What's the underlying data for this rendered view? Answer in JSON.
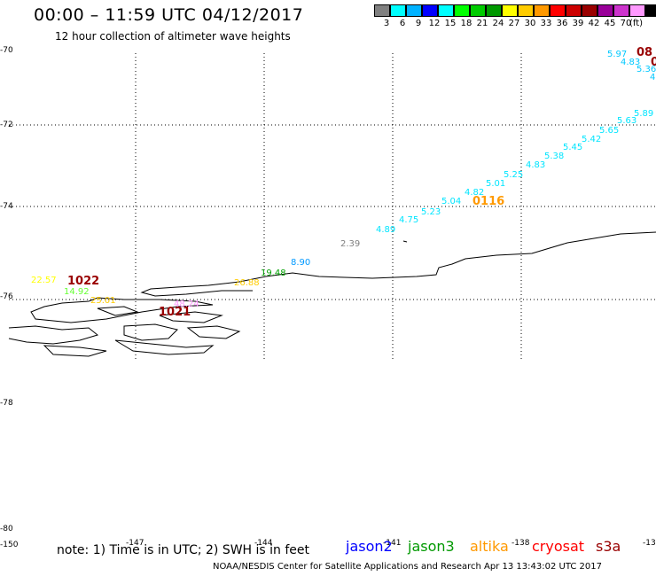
{
  "header": {
    "title": "00:00 – 11:59 UTC 04/12/2017",
    "subtitle": "12 hour collection of altimeter wave heights"
  },
  "color_scale": {
    "swatches": [
      "#808080",
      "#00ffff",
      "#00b2ff",
      "#0000ff",
      "#00ffff",
      "#00ff00",
      "#00cc00",
      "#009900",
      "#ffff00",
      "#ffcc00",
      "#ff9900",
      "#ff0000",
      "#cc0000",
      "#990000",
      "#990099",
      "#cc33cc",
      "#ff99ff",
      "#000000"
    ],
    "labels": [
      "3",
      "6",
      "9",
      "12",
      "15",
      "18",
      "21",
      "24",
      "27",
      "30",
      "33",
      "36",
      "39",
      "42",
      "45",
      "70"
    ],
    "unit": "(ft)"
  },
  "axes": {
    "lat_labels": [
      "-70",
      "-72",
      "-74",
      "-76",
      "-78",
      "-78",
      "-80"
    ],
    "lon_labels": [
      "-150",
      "-147",
      "-144",
      "-141",
      "-138",
      "-135"
    ]
  },
  "observations": [
    {
      "text": "5.97",
      "color": "#00c8ff"
    },
    {
      "text": "4.83",
      "color": "#00c8ff"
    },
    {
      "text": "5.36",
      "color": "#00c8ff"
    },
    {
      "text": "4",
      "color": "#00c8ff"
    },
    {
      "text": "5.89",
      "color": "#00e5ff"
    },
    {
      "text": "5.63",
      "color": "#00e5ff"
    },
    {
      "text": "5.65",
      "color": "#00e5ff"
    },
    {
      "text": "5.42",
      "color": "#00e5ff"
    },
    {
      "text": "5.45",
      "color": "#00e5ff"
    },
    {
      "text": "5.38",
      "color": "#00e5ff"
    },
    {
      "text": "4.83",
      "color": "#00e5ff"
    },
    {
      "text": "5.25",
      "color": "#00e5ff"
    },
    {
      "text": "5.01",
      "color": "#00e5ff"
    },
    {
      "text": "4.82",
      "color": "#00e5ff"
    },
    {
      "text": "5.04",
      "color": "#00e5ff"
    },
    {
      "text": "5.23",
      "color": "#00e5ff"
    },
    {
      "text": "4.75",
      "color": "#00e5ff"
    },
    {
      "text": "4.89",
      "color": "#00e5ff"
    },
    {
      "text": "2.39",
      "color": "#808080"
    },
    {
      "text": "8.90",
      "color": "#0099ff"
    },
    {
      "text": "19.48",
      "color": "#00a000"
    },
    {
      "text": "26.88",
      "color": "#ffcc00"
    },
    {
      "text": "22.57",
      "color": "#ffff00"
    },
    {
      "text": "14.92",
      "color": "#66ff33"
    },
    {
      "text": "25.01",
      "color": "#ffcc00"
    },
    {
      "text": "48.24",
      "color": "#ff99ff"
    }
  ],
  "pass_labels": [
    {
      "text": "0116",
      "color": "#ff9900"
    },
    {
      "text": "1022",
      "color": "#990000"
    },
    {
      "text": "1021",
      "color": "#990000"
    },
    {
      "text": "08",
      "color": "#990000"
    },
    {
      "text": "0",
      "color": "#990000"
    }
  ],
  "footer": {
    "note": "note: 1) Time is in UTC; 2) SWH is in feet",
    "legend": [
      {
        "text": "jason2",
        "color": "#0000ff"
      },
      {
        "text": "jason3",
        "color": "#009900"
      },
      {
        "text": "altika",
        "color": "#ff9900"
      },
      {
        "text": "cryosat",
        "color": "#ff0000"
      },
      {
        "text": "s3a",
        "color": "#990000"
      }
    ],
    "credit": "NOAA/NESDIS Center for Satellite Applications and Research   Apr 13 13:43:02 UTC 2017"
  }
}
